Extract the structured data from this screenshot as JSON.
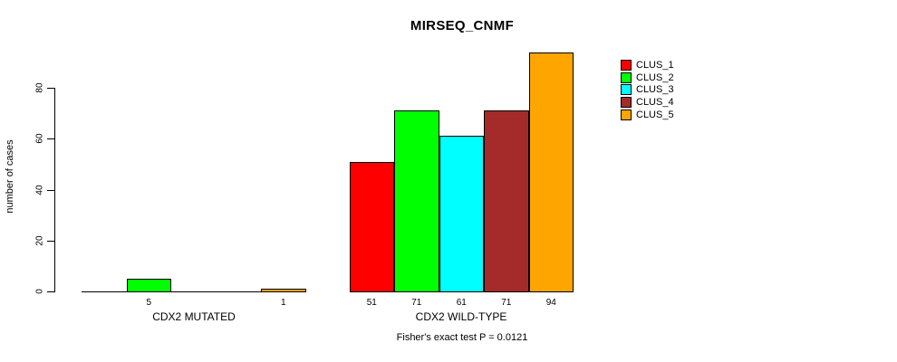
{
  "title": "MIRSEQ_CNMF",
  "subtitle": "Fisher's exact test P = 0.0121",
  "ylabel": "number of cases",
  "colors": {
    "background": "#ffffff",
    "axis": "#000000",
    "text": "#000000"
  },
  "legend": {
    "position": "right",
    "entries": [
      {
        "label": "CLUS_1",
        "color": "#FF0000"
      },
      {
        "label": "CLUS_2",
        "color": "#00FF00"
      },
      {
        "label": "CLUS_3",
        "color": "#00FFFF"
      },
      {
        "label": "CLUS_4",
        "color": "#A52A2A"
      },
      {
        "label": "CLUS_5",
        "color": "#FFA500"
      }
    ]
  },
  "chart_data": {
    "type": "bar",
    "title": "MIRSEQ_CNMF",
    "xlabel": "",
    "ylabel": "number of cases",
    "yticks": [
      0,
      20,
      40,
      60,
      80
    ],
    "ylim": [
      0,
      94
    ],
    "grid": false,
    "legend_position": "top-right",
    "series_names": [
      "CLUS_1",
      "CLUS_2",
      "CLUS_3",
      "CLUS_4",
      "CLUS_5"
    ],
    "series_colors": [
      "#FF0000",
      "#00FF00",
      "#00FFFF",
      "#A52A2A",
      "#FFA500"
    ],
    "groups": [
      {
        "label": "CDX2 MUTATED",
        "values": [
          0,
          5,
          0,
          0,
          1
        ]
      },
      {
        "label": "CDX2 WILD-TYPE",
        "values": [
          51,
          71,
          61,
          71,
          94
        ]
      }
    ],
    "value_labels_shown": [
      "5",
      "1",
      "51",
      "71",
      "61",
      "71",
      "94"
    ],
    "hide_zero_value_labels": true,
    "annotation": "Fisher's exact test P = 0.0121"
  }
}
